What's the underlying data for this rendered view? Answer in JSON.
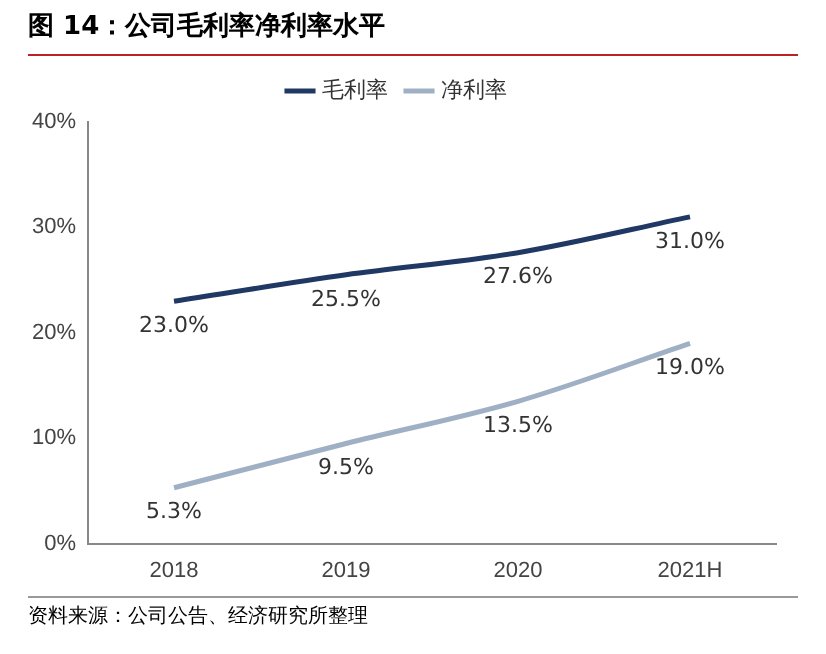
{
  "chart_data": {
    "type": "line",
    "title": "图 14：公司毛利率净利率水平",
    "annotations": [
      "资料来源：公司公告、经济研究所整理"
    ],
    "categories": [
      "2018",
      "2019",
      "2020",
      "2021H"
    ],
    "series": [
      {
        "name": "毛利率",
        "color": "#1f3864",
        "values": [
          23.0,
          25.5,
          27.6,
          31.0
        ],
        "value_labels": [
          "23.0%",
          "25.5%",
          "27.6%",
          "31.0%"
        ]
      },
      {
        "name": "净利率",
        "color": "#a0b0c4",
        "values": [
          5.3,
          9.5,
          13.5,
          19.0
        ],
        "value_labels": [
          "5.3%",
          "9.5%",
          "13.5%",
          "19.0%"
        ]
      }
    ],
    "ylim": [
      0,
      40
    ],
    "yticks": [
      {
        "value": 0,
        "label": "0%"
      },
      {
        "value": 10,
        "label": "10%"
      },
      {
        "value": 20,
        "label": "20%"
      },
      {
        "value": 30,
        "label": "30%"
      },
      {
        "value": 40,
        "label": "40%"
      }
    ],
    "grid": false,
    "legend": "top",
    "marker": "none",
    "line_style": "solid"
  }
}
